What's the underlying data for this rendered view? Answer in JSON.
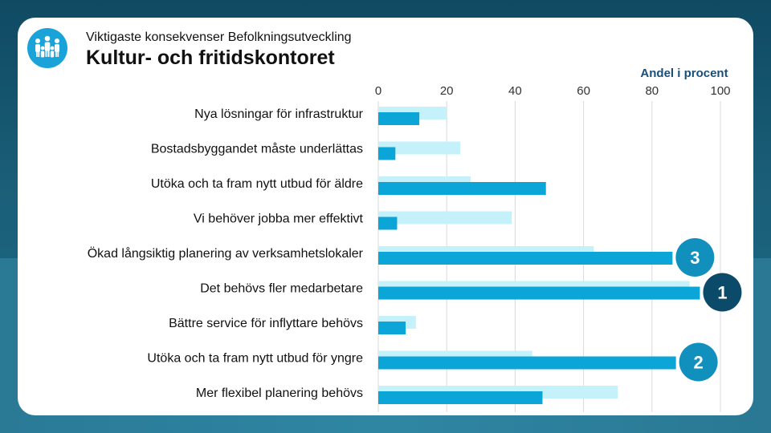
{
  "header": {
    "subtitle": "Viktigaste konsekvenser Befolkningsutveckling",
    "title": "Kultur- och fritidskontoret"
  },
  "colors": {
    "primary_bar": "#0ba5d8",
    "secondary_bar": "#c5f1fb",
    "rank_badge_teal": "#1190be",
    "rank_badge_dark": "#0c4a6a",
    "logo": "#1aa3d9"
  },
  "chart_data": {
    "type": "bar",
    "orientation": "horizontal",
    "xlabel": "Andel i procent",
    "xlim": [
      0,
      100
    ],
    "xticks": [
      0,
      20,
      40,
      60,
      80,
      100
    ],
    "grid": true,
    "categories": [
      "Nya lösningar för infrastruktur",
      "Bostadsbyggandet måste underlättas",
      "Utöka och ta fram nytt utbud för äldre",
      "Vi behöver jobba mer effektivt",
      "Ökad långsiktig planering av verksamhetslokaler",
      "Det behövs fler medarbetare",
      "Bättre service för inflyttare behövs",
      "Utöka och ta fram nytt utbud för yngre",
      "Mer flexibel planering behövs"
    ],
    "series": [
      {
        "name": "secondary",
        "values": [
          20,
          24,
          27,
          39,
          63,
          91,
          11,
          45,
          70
        ]
      },
      {
        "name": "primary",
        "values": [
          12,
          5,
          49,
          5.5,
          86,
          94,
          8,
          87,
          48
        ]
      }
    ],
    "annotations": [
      {
        "category_index": 4,
        "label": "3",
        "style": "teal"
      },
      {
        "category_index": 5,
        "label": "1",
        "style": "dark"
      },
      {
        "category_index": 7,
        "label": "2",
        "style": "teal"
      }
    ]
  }
}
